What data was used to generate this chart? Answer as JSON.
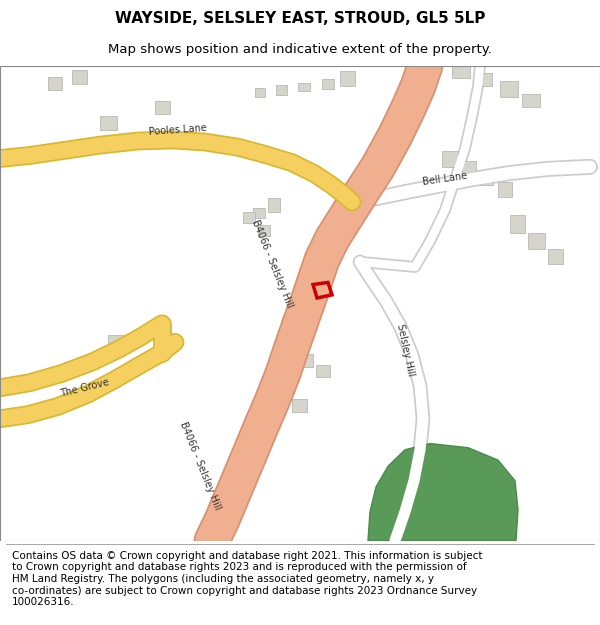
{
  "title": "WAYSIDE, SELSLEY EAST, STROUD, GL5 5LP",
  "subtitle": "Map shows position and indicative extent of the property.",
  "footer": "Contains OS data © Crown copyright and database right 2021. This information is subject\nto Crown copyright and database rights 2023 and is reproduced with the permission of\nHM Land Registry. The polygons (including the associated geometry, namely x, y\nco-ordinates) are subject to Crown copyright and database rights 2023 Ordnance Survey\n100026316.",
  "map_bg": "#f8f8f5",
  "road_main_color": "#f0b090",
  "road_main_edge": "#d89070",
  "road_yellow_color": "#f5d060",
  "road_yellow_edge": "#d8b830",
  "road_minor_color": "#ffffff",
  "road_minor_edge": "#cccccc",
  "building_color": "#d5d5cc",
  "building_edge": "#b0b0a8",
  "green_color": "#5a9a58",
  "green_edge": "#4a8a48",
  "property_color": "#cc0000",
  "label_color": "#333333",
  "title_fontsize": 11,
  "subtitle_fontsize": 9.5,
  "footer_fontsize": 7.5
}
